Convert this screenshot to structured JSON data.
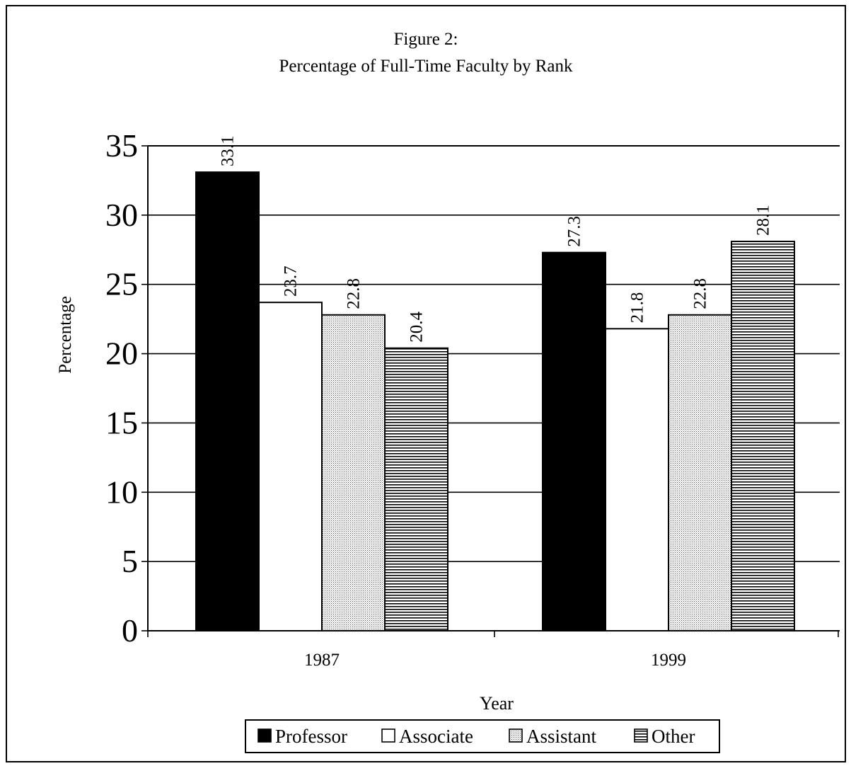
{
  "chart_data": {
    "type": "bar",
    "title": "Figure 2:",
    "subtitle": "Percentage of Full-Time Faculty by Rank",
    "xlabel": "Year",
    "ylabel": "Percentage",
    "categories": [
      "1987",
      "1999"
    ],
    "ylim": [
      0,
      35
    ],
    "yticks": [
      "0",
      "5",
      "10",
      "15",
      "20",
      "25",
      "30",
      "35"
    ],
    "grid": true,
    "legend_position": "bottom",
    "series": [
      {
        "name": "Professor",
        "values": [
          33.1,
          27.3
        ],
        "fill": "solid",
        "color": "#000000"
      },
      {
        "name": "Associate",
        "values": [
          23.7,
          21.8
        ],
        "fill": "solid",
        "color": "#ffffff"
      },
      {
        "name": "Assistant",
        "values": [
          22.8,
          22.8
        ],
        "fill": "dots",
        "color": "#bdbdbd"
      },
      {
        "name": "Other",
        "values": [
          20.4,
          28.1
        ],
        "fill": "hlines",
        "color": "#000000"
      }
    ],
    "data_labels": [
      [
        "33.1",
        "23.7",
        "22.8",
        "20.4"
      ],
      [
        "27.3",
        "21.8",
        "22.8",
        "28.1"
      ]
    ]
  }
}
